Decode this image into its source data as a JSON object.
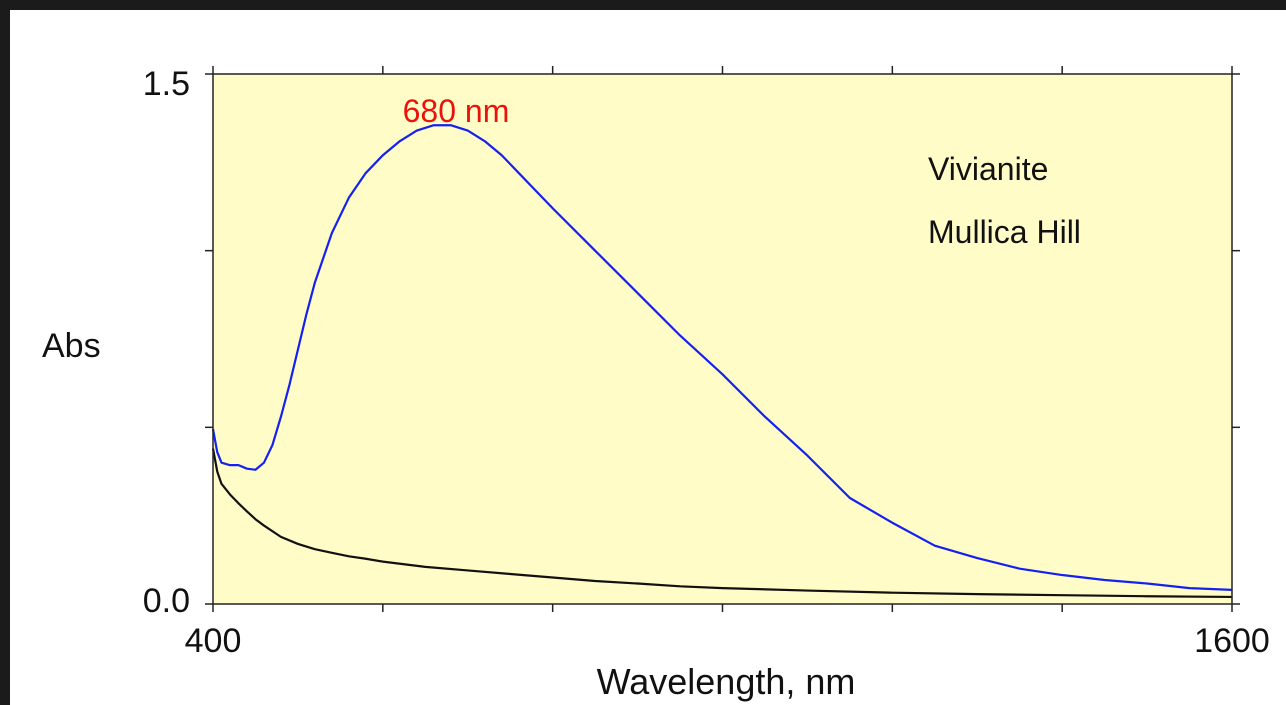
{
  "chart_data": {
    "type": "line",
    "title": "",
    "xlabel": "Wavelength, nm",
    "ylabel": "Abs",
    "xlim": [
      400,
      1600
    ],
    "ylim": [
      0.0,
      1.5
    ],
    "x_tick_labels": [
      "400",
      "1600"
    ],
    "y_tick_labels": [
      "0.0",
      "1.5"
    ],
    "x_minor_ticks": [
      600,
      800,
      1000,
      1200,
      1400
    ],
    "y_minor_ticks": [
      0.5,
      1.0
    ],
    "legend_position": "top-right",
    "legend_lines": [
      "Vivianite",
      "Mullica Hill"
    ],
    "annotations": [
      {
        "text": "680 nm",
        "x": 680,
        "y": 1.44,
        "color": "#e8130c"
      }
    ],
    "background_color": "#fffcc8",
    "series": [
      {
        "color": "#1521ee",
        "x": [
          400,
          405,
          410,
          420,
          430,
          440,
          450,
          460,
          470,
          480,
          490,
          500,
          510,
          520,
          540,
          560,
          580,
          600,
          620,
          640,
          660,
          680,
          700,
          720,
          740,
          760,
          780,
          800,
          850,
          900,
          950,
          1000,
          1050,
          1100,
          1150,
          1200,
          1250,
          1300,
          1350,
          1400,
          1450,
          1500,
          1550,
          1600
        ],
        "y": [
          0.495,
          0.43,
          0.4,
          0.393,
          0.393,
          0.383,
          0.38,
          0.4,
          0.45,
          0.53,
          0.62,
          0.72,
          0.82,
          0.91,
          1.05,
          1.15,
          1.22,
          1.27,
          1.31,
          1.34,
          1.355,
          1.355,
          1.34,
          1.31,
          1.27,
          1.22,
          1.17,
          1.12,
          1.0,
          0.88,
          0.76,
          0.65,
          0.53,
          0.42,
          0.3,
          0.23,
          0.165,
          0.13,
          0.1,
          0.082,
          0.068,
          0.058,
          0.045,
          0.04
        ]
      },
      {
        "color": "#111111",
        "x": [
          400,
          405,
          410,
          420,
          430,
          440,
          450,
          460,
          480,
          500,
          520,
          540,
          560,
          580,
          600,
          650,
          700,
          750,
          800,
          850,
          900,
          950,
          1000,
          1100,
          1200,
          1300,
          1400,
          1500,
          1600
        ],
        "y": [
          0.44,
          0.375,
          0.34,
          0.31,
          0.285,
          0.262,
          0.24,
          0.222,
          0.19,
          0.17,
          0.155,
          0.145,
          0.135,
          0.128,
          0.12,
          0.105,
          0.095,
          0.085,
          0.075,
          0.065,
          0.058,
          0.05,
          0.045,
          0.038,
          0.032,
          0.028,
          0.025,
          0.022,
          0.02
        ]
      }
    ]
  }
}
